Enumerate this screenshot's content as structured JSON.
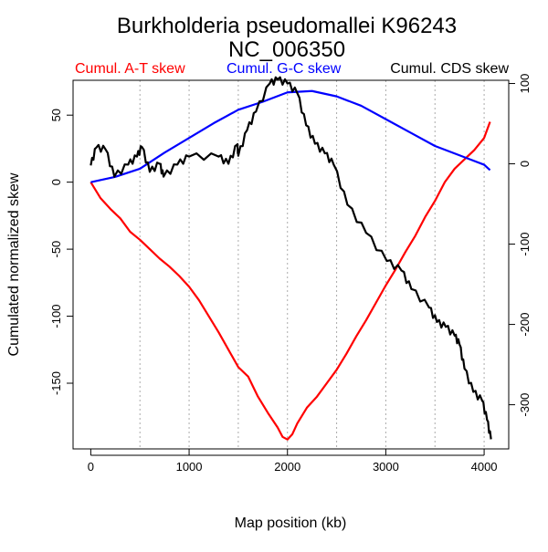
{
  "chart_data": {
    "type": "line",
    "title": "Burkholderia pseudomallei K96243",
    "subtitle": "NC_006350",
    "xlabel": "Map position (kb)",
    "ylabel": "Cumulated normalized skew",
    "xlim": [
      -180,
      4250
    ],
    "ylim_left": [
      -199,
      76
    ],
    "ylim_right": [
      -355,
      104
    ],
    "x_ticks": [
      0,
      1000,
      2000,
      3000,
      4000
    ],
    "x_tick_labels": [
      "0",
      "1000",
      "2000",
      "3000",
      "4000"
    ],
    "y_left_ticks": [
      50,
      0,
      -50,
      -100,
      -150
    ],
    "y_left_tick_labels": [
      "50",
      "0",
      "-50",
      "-100",
      "-150"
    ],
    "y_right_ticks": [
      100,
      0,
      -100,
      -200,
      -300
    ],
    "y_right_tick_labels": [
      "100",
      "0",
      "-100",
      "-200",
      "-300"
    ],
    "grid_x": [
      500,
      1000,
      1500,
      2000,
      2500,
      3000,
      3500,
      4000
    ],
    "legend_placement": "top",
    "series": [
      {
        "name": "Cumul. A-T skew",
        "color": "#ff0000",
        "axis": "left",
        "x": [
          0,
          100,
          200,
          300,
          400,
          500,
          600,
          700,
          800,
          900,
          1000,
          1100,
          1200,
          1300,
          1400,
          1500,
          1600,
          1700,
          1800,
          1900,
          1950,
          2000,
          2050,
          2100,
          2200,
          2300,
          2400,
          2500,
          2600,
          2700,
          2800,
          2900,
          3000,
          3100,
          3200,
          3300,
          3400,
          3500,
          3600,
          3700,
          3800,
          3900,
          4000,
          4060
        ],
        "y": [
          0,
          -12,
          -20,
          -27,
          -37,
          -43,
          -50,
          -57,
          -63,
          -70,
          -78,
          -88,
          -100,
          -112,
          -125,
          -138,
          -145,
          -160,
          -172,
          -183,
          -190,
          -192,
          -188,
          -180,
          -168,
          -160,
          -150,
          -140,
          -128,
          -115,
          -103,
          -90,
          -77,
          -65,
          -52,
          -40,
          -26,
          -14,
          0,
          10,
          17,
          24,
          33,
          45
        ]
      },
      {
        "name": "Cumul. G-C skew",
        "color": "#0000ff",
        "axis": "left",
        "x": [
          0,
          250,
          500,
          750,
          1000,
          1250,
          1500,
          1750,
          2000,
          2250,
          2500,
          2750,
          3000,
          3250,
          3500,
          3750,
          4000,
          4060
        ],
        "y": [
          0,
          4,
          10,
          22,
          33,
          44,
          54,
          60,
          67,
          68,
          64,
          57,
          47,
          37,
          27,
          20,
          13,
          9
        ]
      },
      {
        "name": "Cumul. CDS skew",
        "color": "#000000",
        "axis": "right",
        "x": [
          0,
          55,
          150,
          240,
          380,
          470,
          520,
          600,
          700,
          740,
          880,
          1000,
          1300,
          1400,
          1490,
          1500,
          1590,
          1680,
          1820,
          1900,
          2000,
          2100,
          2190,
          2280,
          2380,
          2470,
          2610,
          2800,
          3010,
          3160,
          3260,
          3440,
          3520,
          3610,
          3700,
          3750,
          3800,
          3890,
          3980,
          4030,
          4070
        ],
        "y": [
          -2,
          20,
          18,
          -16,
          -1,
          9,
          21,
          -10,
          0,
          -16,
          -1,
          9,
          9,
          0,
          24,
          10,
          42,
          65,
          100,
          105,
          100,
          88,
          48,
          25,
          13,
          -1,
          -51,
          -86,
          -121,
          -133,
          -156,
          -179,
          -197,
          -203,
          -214,
          -225,
          -255,
          -284,
          -295,
          -319,
          -343
        ]
      }
    ]
  }
}
